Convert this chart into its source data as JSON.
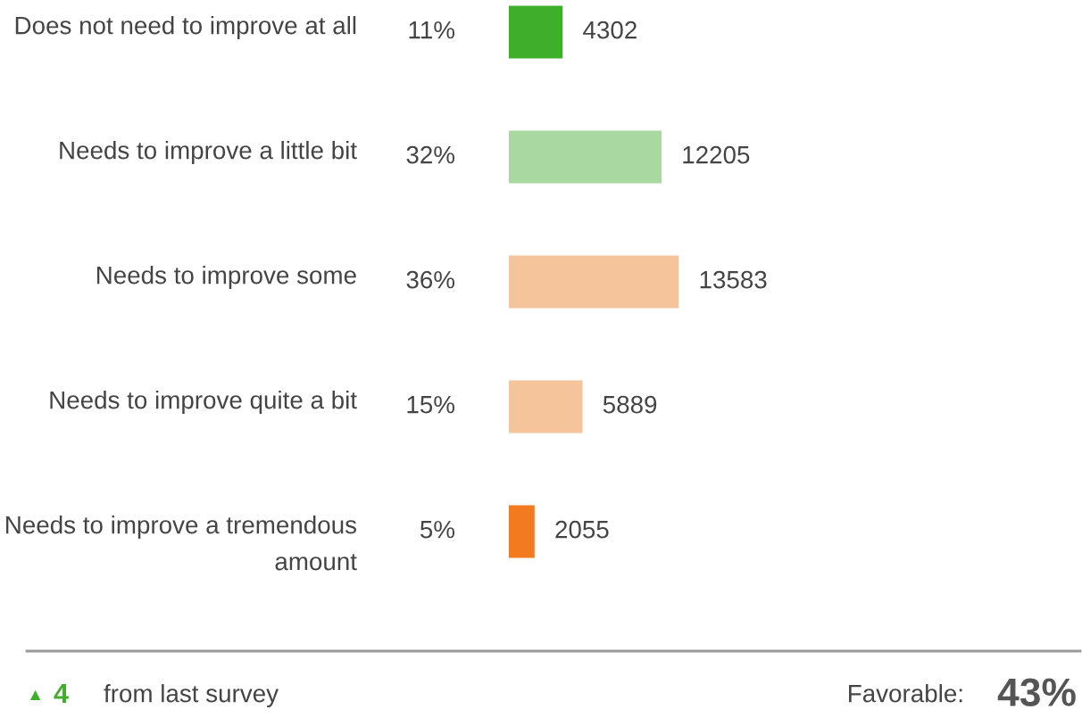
{
  "chart_data": {
    "type": "bar",
    "orientation": "horizontal",
    "categories": [
      "Does not need to improve at all",
      "Needs to improve a little bit",
      "Needs to improve some",
      "Needs to improve quite a bit",
      "Needs to improve a tremendous amount"
    ],
    "values": [
      4302,
      12205,
      13583,
      5889,
      2055
    ],
    "colors": [
      "#3fae2a",
      "#a9d8a0",
      "#f5c49b",
      "#f5c49b",
      "#f47a22"
    ],
    "data_labels": true,
    "annotations": [
      "11%",
      "32%",
      "36%",
      "15%",
      "5%",
      "▲",
      "4",
      "from last survey",
      "Favorable:",
      "43%"
    ]
  }
}
